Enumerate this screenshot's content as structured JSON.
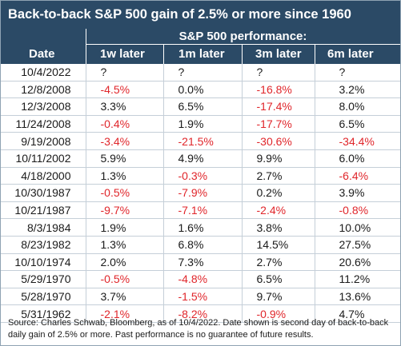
{
  "title": "Back-to-back S&P 500 gain of 2.5% or more since 1960",
  "group_header": "S&P 500 performance:",
  "columns": [
    "Date",
    "1w later",
    "1m later",
    "3m later",
    "6m later"
  ],
  "rows": [
    {
      "date": "10/4/2022",
      "w1": "?",
      "m1": "?",
      "m3": "?",
      "m6": "?"
    },
    {
      "date": "12/8/2008",
      "w1": "-4.5%",
      "m1": "0.0%",
      "m3": "-16.8%",
      "m6": "3.2%"
    },
    {
      "date": "12/3/2008",
      "w1": "3.3%",
      "m1": "6.5%",
      "m3": "-17.4%",
      "m6": "8.0%"
    },
    {
      "date": "11/24/2008",
      "w1": "-0.4%",
      "m1": "1.9%",
      "m3": "-17.7%",
      "m6": "6.5%"
    },
    {
      "date": "9/19/2008",
      "w1": "-3.4%",
      "m1": "-21.5%",
      "m3": "-30.6%",
      "m6": "-34.4%"
    },
    {
      "date": "10/11/2002",
      "w1": "5.9%",
      "m1": "4.9%",
      "m3": "9.9%",
      "m6": "6.0%"
    },
    {
      "date": "4/18/2000",
      "w1": "1.3%",
      "m1": "-0.3%",
      "m3": "2.7%",
      "m6": "-6.4%"
    },
    {
      "date": "10/30/1987",
      "w1": "-0.5%",
      "m1": "-7.9%",
      "m3": "0.2%",
      "m6": "3.9%"
    },
    {
      "date": "10/21/1987",
      "w1": "-9.7%",
      "m1": "-7.1%",
      "m3": "-2.4%",
      "m6": "-0.8%"
    },
    {
      "date": "8/3/1984",
      "w1": "1.9%",
      "m1": "1.6%",
      "m3": "3.8%",
      "m6": "10.0%"
    },
    {
      "date": "8/23/1982",
      "w1": "1.3%",
      "m1": "6.8%",
      "m3": "14.5%",
      "m6": "27.5%"
    },
    {
      "date": "10/10/1974",
      "w1": "2.0%",
      "m1": "7.3%",
      "m3": "2.7%",
      "m6": "20.6%"
    },
    {
      "date": "5/29/1970",
      "w1": "-0.5%",
      "m1": "-4.8%",
      "m3": "6.5%",
      "m6": "11.2%"
    },
    {
      "date": "5/28/1970",
      "w1": "3.7%",
      "m1": "-1.5%",
      "m3": "9.7%",
      "m6": "13.6%"
    },
    {
      "date": "5/31/1962",
      "w1": "-2.1%",
      "m1": "-8.2%",
      "m3": "-0.9%",
      "m6": "4.7%"
    }
  ],
  "source": "Source: Charles Schwab, Bloomberg, as of 10/4/2022. Date shown is second day of back-to-back daily gain of 2.5% or more. Past performance is no guarantee of future results.",
  "colors": {
    "header_bg": "#2b4a66",
    "negative": "#e0262b",
    "grid": "#c5cfd8"
  }
}
